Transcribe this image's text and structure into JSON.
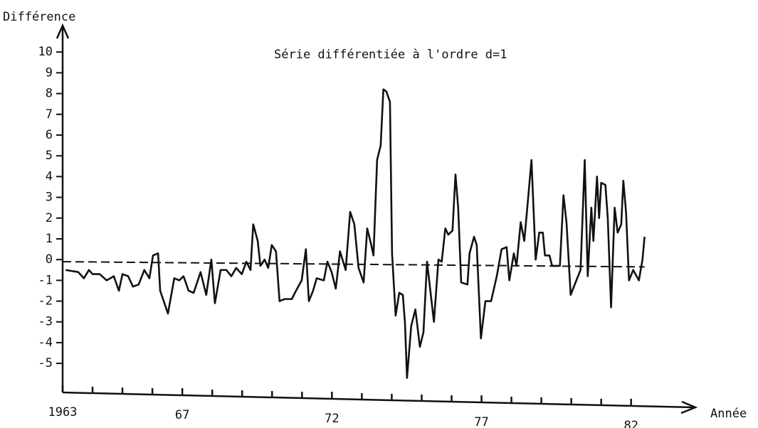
{
  "chart_data": {
    "type": "line",
    "title": "Série différentiée à l'ordre d=1",
    "ylabel": "Différence",
    "xlabel": "Année",
    "xlim": [
      1963,
      1984.1
    ],
    "ylim": [
      -6.4,
      11
    ],
    "xticks": [
      {
        "value": 1963,
        "label": "1963"
      },
      {
        "value": 1967,
        "label": "67"
      },
      {
        "value": 1972,
        "label": "72"
      },
      {
        "value": 1977,
        "label": "77"
      },
      {
        "value": 1982,
        "label": "82"
      }
    ],
    "xminor_ticks": [
      1964,
      1965,
      1966,
      1968,
      1969,
      1970,
      1971,
      1973,
      1974,
      1975,
      1976,
      1978,
      1979,
      1980,
      1981
    ],
    "yticks": [
      -5,
      -4,
      -3,
      -2,
      -1,
      0,
      1,
      2,
      3,
      4,
      5,
      6,
      7,
      8,
      9,
      10
    ],
    "grid": false,
    "series": [
      {
        "color": "#111111",
        "dash": false,
        "x": [
          1963.1,
          1963.52,
          1963.71,
          1963.88,
          1964.0,
          1964.24,
          1964.47,
          1964.71,
          1964.88,
          1965.0,
          1965.19,
          1965.35,
          1965.54,
          1965.73,
          1965.9,
          1966.02,
          1966.19,
          1966.26,
          1966.52,
          1966.73,
          1966.9,
          1967.04,
          1967.21,
          1967.38,
          1967.61,
          1967.8,
          1967.97,
          1968.09,
          1968.28,
          1968.47,
          1968.64,
          1968.8,
          1968.99,
          1969.14,
          1969.28,
          1969.37,
          1969.52,
          1969.61,
          1969.75,
          1969.87,
          1969.99,
          1970.13,
          1970.25,
          1970.42,
          1970.66,
          1970.8,
          1970.99,
          1971.13,
          1971.23,
          1971.37,
          1971.49,
          1971.73,
          1971.85,
          1971.99,
          1972.13,
          1972.27,
          1972.46,
          1972.61,
          1972.75,
          1972.89,
          1973.06,
          1973.18,
          1973.3,
          1973.39,
          1973.51,
          1973.63,
          1973.72,
          1973.82,
          1973.94,
          1974.01,
          1974.13,
          1974.25,
          1974.37,
          1974.44,
          1974.51,
          1974.65,
          1974.79,
          1974.94,
          1975.06,
          1975.18,
          1975.29,
          1975.41,
          1975.56,
          1975.67,
          1975.79,
          1975.89,
          1976.03,
          1976.13,
          1976.22,
          1976.32,
          1976.53,
          1976.6,
          1976.75,
          1976.84,
          1976.98,
          1977.13,
          1977.32,
          1977.51,
          1977.67,
          1977.84,
          1977.93,
          1978.08,
          1978.17,
          1978.31,
          1978.43,
          1978.53,
          1978.67,
          1978.81,
          1978.93,
          1979.05,
          1979.12,
          1979.27,
          1979.36,
          1979.62,
          1979.74,
          1979.84,
          1979.98,
          1980.17,
          1980.31,
          1980.45,
          1980.55,
          1980.67,
          1980.74,
          1980.86,
          1980.93,
          1981.0,
          1981.14,
          1981.22,
          1981.33,
          1981.45,
          1981.55,
          1981.67,
          1981.74,
          1981.83,
          1981.93,
          1982.07,
          1982.26,
          1982.38,
          1982.45
        ],
        "values": [
          -0.5,
          -0.6,
          -0.9,
          -0.5,
          -0.7,
          -0.7,
          -1.0,
          -0.8,
          -1.5,
          -0.7,
          -0.8,
          -1.3,
          -1.2,
          -0.5,
          -0.9,
          0.2,
          0.3,
          -1.5,
          -2.6,
          -0.9,
          -1.0,
          -0.8,
          -1.5,
          -1.6,
          -0.6,
          -1.7,
          0.0,
          -2.1,
          -0.5,
          -0.5,
          -0.8,
          -0.4,
          -0.7,
          -0.1,
          -0.5,
          1.7,
          0.9,
          -0.3,
          0.0,
          -0.4,
          0.7,
          0.4,
          -2.0,
          -1.9,
          -1.9,
          -1.5,
          -1.0,
          0.5,
          -2.0,
          -1.5,
          -0.9,
          -1.0,
          -0.1,
          -0.6,
          -1.4,
          0.4,
          -0.5,
          2.3,
          1.7,
          -0.4,
          -1.1,
          1.5,
          0.8,
          0.2,
          4.8,
          5.5,
          8.2,
          8.1,
          7.6,
          0.3,
          -2.7,
          -1.6,
          -1.7,
          -3.0,
          -5.7,
          -3.2,
          -2.4,
          -4.2,
          -3.5,
          -0.1,
          -1.5,
          -3.0,
          0.0,
          -0.1,
          1.5,
          1.2,
          1.4,
          4.1,
          2.5,
          -1.1,
          -1.2,
          0.3,
          1.1,
          0.7,
          -3.8,
          -2.0,
          -2.0,
          -0.8,
          0.5,
          0.6,
          -1.0,
          0.3,
          -0.3,
          1.8,
          0.9,
          2.5,
          4.8,
          0.0,
          1.3,
          1.3,
          0.2,
          0.2,
          -0.3,
          -0.3,
          3.1,
          1.8,
          -1.7,
          -1.0,
          -0.5,
          4.8,
          -0.8,
          2.5,
          0.9,
          4.0,
          2.0,
          3.7,
          3.6,
          2.0,
          -2.3,
          2.5,
          1.3,
          1.7,
          3.8,
          2.3,
          -1.0,
          -0.5,
          -1.0,
          0.0,
          1.1
        ]
      },
      {
        "color": "#111111",
        "dash": true,
        "x": [
          1963,
          1982.45
        ],
        "values": [
          -0.1,
          -0.35
        ]
      }
    ]
  }
}
